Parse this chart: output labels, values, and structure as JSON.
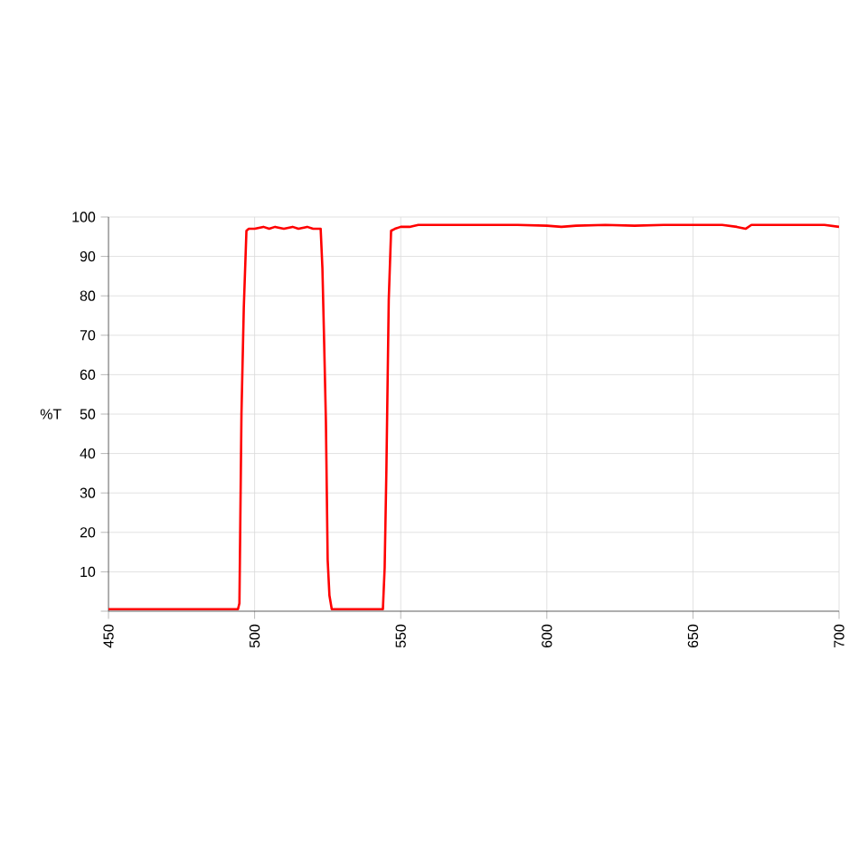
{
  "chart_data": {
    "type": "line",
    "ylabel": "%T",
    "x": [
      450,
      494.3,
      494.8,
      495.5,
      496.3,
      497.2,
      498,
      500,
      503,
      505,
      507,
      510,
      513,
      515,
      518,
      520,
      522.6,
      523.2,
      523.8,
      524.4,
      525,
      525.6,
      526.4,
      530,
      543.9,
      544.5,
      545.1,
      545.9,
      546.7,
      548,
      550,
      553,
      556,
      560,
      570,
      580,
      590,
      600,
      605,
      610,
      620,
      630,
      640,
      650,
      660,
      665,
      668,
      670,
      680,
      690,
      695,
      700
    ],
    "series": [
      {
        "color": "#ff0000",
        "values": [
          0.5,
          0.5,
          2,
          50,
          77,
          96.5,
          97,
          97,
          97.5,
          97,
          97.5,
          97,
          97.5,
          97,
          97.5,
          97,
          97,
          87,
          68,
          48,
          13,
          4,
          0.5,
          0.5,
          0.5,
          11,
          36,
          79,
          96.5,
          97,
          97.5,
          97.5,
          98,
          98,
          98,
          98,
          98,
          97.8,
          97.5,
          97.8,
          98,
          97.8,
          98,
          98,
          98,
          97.5,
          97,
          98,
          98,
          98,
          98,
          97.5
        ]
      }
    ],
    "xlim": [
      450,
      700
    ],
    "ylim": [
      0,
      100
    ],
    "xticks": [
      450,
      500,
      550,
      600,
      650,
      700
    ],
    "yticks": [
      {
        "value": 0,
        "label": null
      },
      10,
      20,
      30,
      40,
      50,
      60,
      70,
      80,
      90,
      100
    ],
    "grid": true,
    "marker": "none",
    "line_style": "solid"
  }
}
